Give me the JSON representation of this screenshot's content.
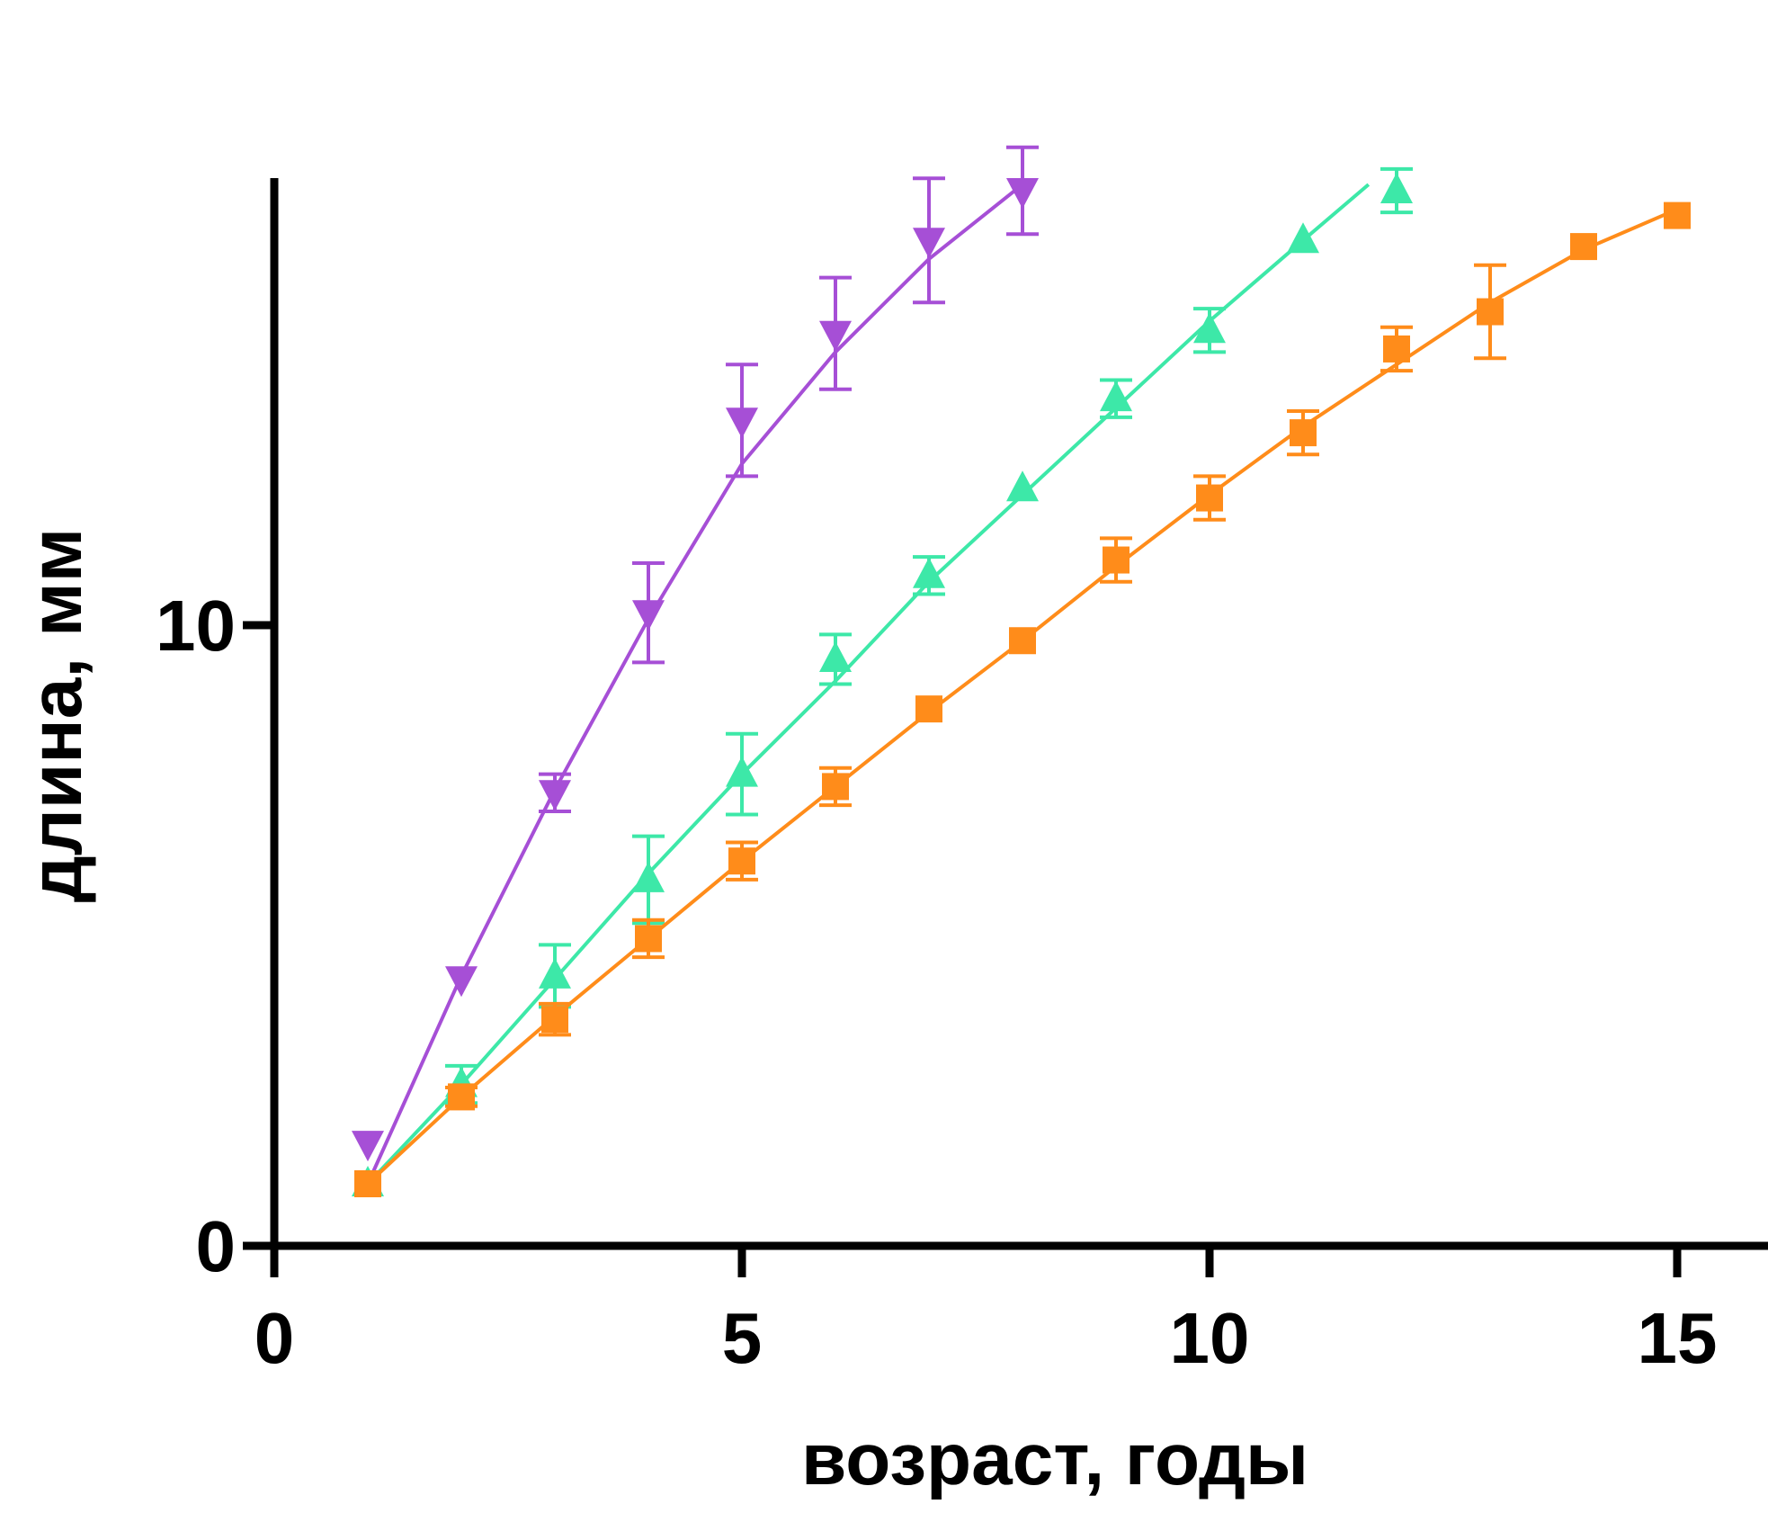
{
  "chart_data": {
    "type": "line",
    "title": "",
    "xlabel": "возраст, годы",
    "ylabel": "длина, мм",
    "xlim": [
      0,
      16
    ],
    "ylim": [
      0,
      18
    ],
    "x_ticks": [
      {
        "value": 0,
        "label": "0"
      },
      {
        "value": 5,
        "label": "5"
      },
      {
        "value": 10,
        "label": "10"
      },
      {
        "value": 15,
        "label": "15"
      }
    ],
    "y_ticks": [
      {
        "value": 0,
        "label": "0"
      },
      {
        "value": 10,
        "label": "10"
      }
    ],
    "grid": false,
    "legend": "none",
    "series": [
      {
        "marker": "triangle-down",
        "color": "#a64fd6",
        "x": [
          1,
          2,
          3,
          4,
          5,
          6,
          7,
          8
        ],
        "y": [
          1.65,
          4.3,
          7.3,
          10.2,
          13.3,
          14.7,
          16.2,
          17.0
        ],
        "err": [
          0.0,
          0.0,
          0.3,
          0.8,
          0.9,
          0.9,
          1.0,
          0.7
        ],
        "fit_x": [
          1,
          2,
          3,
          4,
          5,
          6,
          7,
          8
        ],
        "fit_y": [
          1.0,
          4.35,
          7.35,
          10.1,
          12.6,
          14.4,
          15.9,
          17.1
        ]
      },
      {
        "marker": "triangle-up",
        "color": "#3de8a8",
        "x": [
          1,
          2,
          3,
          4,
          5,
          6,
          7,
          8,
          9,
          10,
          11,
          12
        ],
        "y": [
          1.0,
          2.6,
          4.35,
          5.9,
          7.6,
          9.45,
          10.8,
          12.2,
          13.65,
          14.75,
          16.2,
          17.0
        ],
        "err": [
          0.0,
          0.3,
          0.5,
          0.7,
          0.65,
          0.4,
          0.3,
          0.0,
          0.3,
          0.35,
          0.0,
          0.35
        ],
        "fit_x": [
          1,
          2,
          3,
          4,
          5,
          6,
          7,
          8,
          9,
          10,
          11,
          11.7
        ],
        "fit_y": [
          1.0,
          2.6,
          4.3,
          6.0,
          7.6,
          9.1,
          10.7,
          12.1,
          13.5,
          14.9,
          16.2,
          17.1
        ]
      },
      {
        "marker": "square",
        "color": "#ff8c1a",
        "x": [
          1,
          2,
          3,
          4,
          5,
          6,
          7,
          8,
          9,
          10,
          11,
          12,
          13,
          14,
          15
        ],
        "y": [
          1.0,
          2.4,
          3.65,
          4.95,
          6.2,
          7.4,
          8.65,
          9.75,
          11.05,
          12.05,
          13.1,
          14.45,
          15.05,
          16.1,
          16.6
        ],
        "err": [
          0.0,
          0.15,
          0.25,
          0.3,
          0.3,
          0.3,
          0.0,
          0.0,
          0.35,
          0.35,
          0.35,
          0.35,
          0.75,
          0.0,
          0.0
        ],
        "fit_x": [
          1,
          2,
          3,
          4,
          5,
          6,
          7,
          8,
          9,
          10,
          11,
          12,
          13,
          14,
          15
        ],
        "fit_y": [
          1.0,
          2.4,
          3.7,
          4.95,
          6.2,
          7.4,
          8.6,
          9.75,
          10.95,
          12.1,
          13.2,
          14.2,
          15.2,
          16.05,
          16.7
        ]
      }
    ]
  }
}
